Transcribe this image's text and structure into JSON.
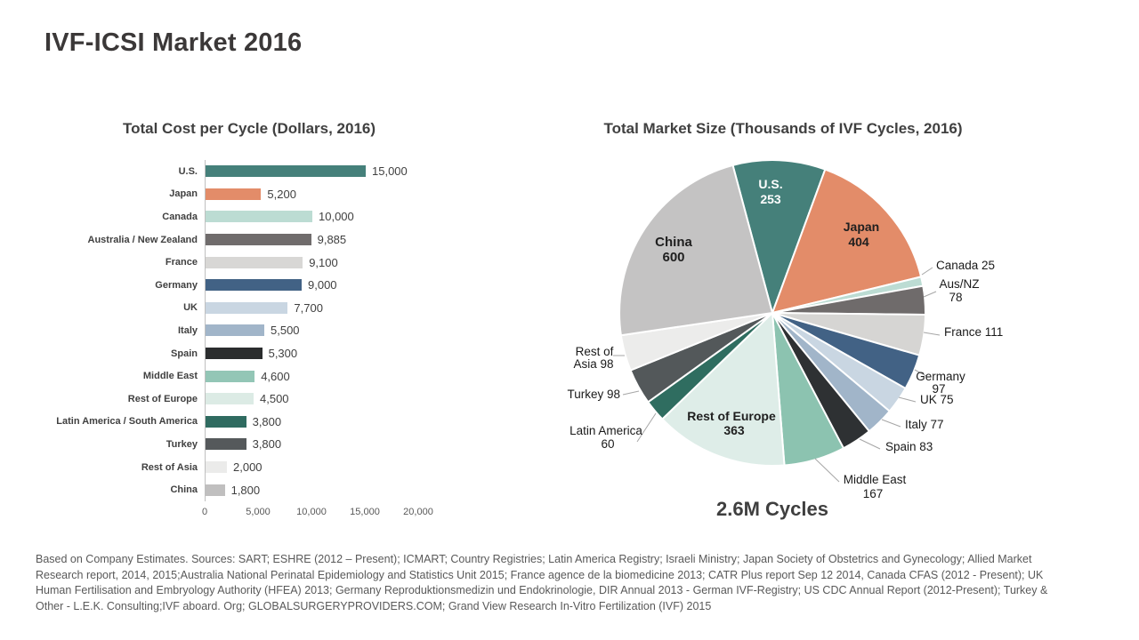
{
  "slide": {
    "title": "IVF-ICSI Market 2016",
    "footer_lines": [
      "Based on Company Estimates. Sources: SART; ESHRE (2012 – Present); ICMART; Country Registries; Latin America Registry; Israeli Ministry; Japan Society of Obstetrics and Gynecology; Allied Market",
      "Research report, 2014, 2015;Australia National Perinatal Epidemiology and Statistics Unit 2015; France agence de la biomedicine 2013; CATR Plus report Sep 12 2014, Canada CFAS (2012 - Present); UK",
      "Human Fertilisation and Embryology Authority (HFEA) 2013; Germany Reproduktionsmedizin und Endokrinologie, DIR Annual 2013 - German IVF-Registry; US CDC Annual Report (2012-Present); Turkey &",
      "Other - L.E.K. Consulting;IVF aboard. Org; GLOBALSURGERYPROVIDERS.COM; Grand View Research In-Vitro Fertilization (IVF) 2015"
    ]
  },
  "chart_data": [
    {
      "type": "bar",
      "orientation": "horizontal",
      "title": "Total Cost per Cycle (Dollars, 2016)",
      "categories": [
        "U.S.",
        "Japan",
        "Canada",
        "Australia / New Zealand",
        "France",
        "Germany",
        "UK",
        "Italy",
        "Spain",
        "Middle East",
        "Rest of Europe",
        "Latin America / South America",
        "Turkey",
        "Rest of Asia",
        "China"
      ],
      "values": [
        15000,
        5200,
        10000,
        9885,
        9100,
        9000,
        7700,
        5500,
        5300,
        4600,
        4500,
        3800,
        3800,
        2000,
        1800
      ],
      "colors": [
        "#45807A",
        "#E38C69",
        "#BCDCD3",
        "#706C6C",
        "#D8D7D5",
        "#426285",
        "#C9D6E2",
        "#A1B5C9",
        "#2B2D2E",
        "#93C6B6",
        "#DCEBE5",
        "#2F6B60",
        "#55595B",
        "#EBEBEA",
        "#C0BFBF"
      ],
      "xlim": [
        0,
        20000
      ],
      "x_ticks": [
        0,
        5000,
        10000,
        15000,
        20000
      ],
      "grid": false,
      "value_labels_shown": true
    },
    {
      "type": "pie",
      "title": "Total Market Size (Thousands of IVF Cycles, 2016)",
      "total_label": "2.6M Cycles",
      "total_value_thousands": 2589,
      "start_angle_deg": -15,
      "direction": "clockwise",
      "slices": [
        {
          "label": "U.S.",
          "value": 253,
          "color": "#45807A",
          "label_lines": [
            "U.S.",
            "253"
          ]
        },
        {
          "label": "Japan",
          "value": 404,
          "color": "#E38C69",
          "label_lines": [
            "Japan",
            "404"
          ]
        },
        {
          "label": "Canada",
          "value": 25,
          "color": "#BCDCD3",
          "label_lines": [
            "Canada 25"
          ]
        },
        {
          "label": "Aus/NZ",
          "value": 78,
          "color": "#6F6B6B",
          "label_lines": [
            "Aus/NZ",
            "78"
          ]
        },
        {
          "label": "France",
          "value": 111,
          "color": "#D6D5D3",
          "label_lines": [
            "France 111"
          ]
        },
        {
          "label": "Germany",
          "value": 97,
          "color": "#426285",
          "label_lines": [
            "Germany",
            "97"
          ]
        },
        {
          "label": "UK",
          "value": 75,
          "color": "#C9D6E2",
          "label_lines": [
            "UK 75"
          ]
        },
        {
          "label": "Italy",
          "value": 77,
          "color": "#A1B5C9",
          "label_lines": [
            "Italy 77"
          ]
        },
        {
          "label": "Spain",
          "value": 83,
          "color": "#2E3133",
          "label_lines": [
            "Spain 83"
          ]
        },
        {
          "label": "Middle East",
          "value": 167,
          "color": "#8CC3B0",
          "label_lines": [
            "Middle East",
            "167"
          ]
        },
        {
          "label": "Rest of Europe",
          "value": 363,
          "color": "#DEEDE8",
          "label_lines": [
            "Rest of Europe",
            "363"
          ]
        },
        {
          "label": "Latin America",
          "value": 60,
          "color": "#2F6D60",
          "label_lines": [
            "Latin America",
            "60"
          ]
        },
        {
          "label": "Turkey",
          "value": 98,
          "color": "#53585A",
          "label_lines": [
            "Turkey 98"
          ]
        },
        {
          "label": "Rest of Asia",
          "value": 98,
          "color": "#ECECEB",
          "label_lines": [
            "Rest of",
            "Asia 98"
          ]
        },
        {
          "label": "China",
          "value": 600,
          "color": "#C4C3C3",
          "label_lines": [
            "China",
            "600"
          ]
        }
      ]
    }
  ]
}
